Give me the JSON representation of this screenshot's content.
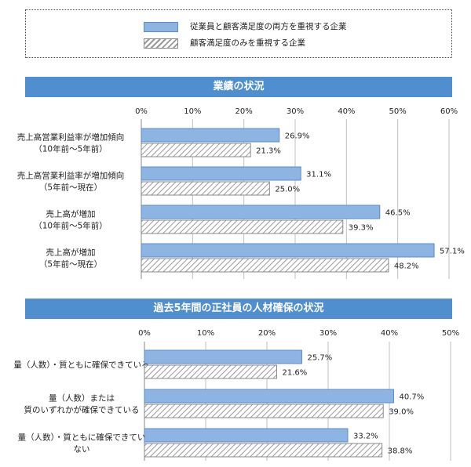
{
  "legend": {
    "items": [
      {
        "label": "従業員と顧客満足度の両方を重視する企業",
        "style": "solid"
      },
      {
        "label": "顧客満足度のみを重視する企業",
        "style": "hatched"
      }
    ]
  },
  "colors": {
    "solid_fill": "#8db4e3",
    "solid_stroke": "#5a8cc9",
    "hatch": "#999999",
    "banner": "#4f8fd0",
    "grid": "#bfbfbf"
  },
  "chart_data": [
    {
      "type": "bar",
      "orientation": "horizontal",
      "title": "業績の状況",
      "ticks": [
        "0%",
        "10%",
        "20%",
        "30%",
        "40%",
        "50%",
        "60%"
      ],
      "xlim": [
        0,
        60
      ],
      "categories": [
        {
          "lines": [
            "売上高営業利益率が増加傾向",
            "（10年前～5年前）"
          ]
        },
        {
          "lines": [
            "売上高営業利益率が増加傾向",
            "（5年前～現在）"
          ]
        },
        {
          "lines": [
            "売上高が増加",
            "（10年前～5年前）"
          ]
        },
        {
          "lines": [
            "売上高が増加",
            "（5年前～現在）"
          ]
        }
      ],
      "series": [
        {
          "values": [
            26.9,
            31.1,
            46.5,
            57.1
          ],
          "labels": [
            "26.9%",
            "31.1%",
            "46.5%",
            "57.1%"
          ]
        },
        {
          "values": [
            21.3,
            25.0,
            39.3,
            48.2
          ],
          "labels": [
            "21.3%",
            "25.0%",
            "39.3%",
            "48.2%"
          ]
        }
      ]
    },
    {
      "type": "bar",
      "orientation": "horizontal",
      "title": "過去5年間の正社員の人材確保の状況",
      "ticks": [
        "0%",
        "10%",
        "20%",
        "30%",
        "40%",
        "50%"
      ],
      "xlim": [
        0,
        50
      ],
      "categories": [
        {
          "lines": [
            "量（人数）・質ともに確保できている"
          ]
        },
        {
          "lines": [
            "量（人数）または",
            "質のいずれかが確保できている"
          ]
        },
        {
          "lines": [
            "量（人数）・質ともに確保できてい",
            "ない"
          ]
        }
      ],
      "series": [
        {
          "values": [
            25.7,
            40.7,
            33.2
          ],
          "labels": [
            "25.7%",
            "40.7%",
            "33.2%"
          ]
        },
        {
          "values": [
            21.6,
            39.0,
            38.8
          ],
          "labels": [
            "21.6%",
            "39.0%",
            "38.8%"
          ]
        }
      ]
    }
  ]
}
